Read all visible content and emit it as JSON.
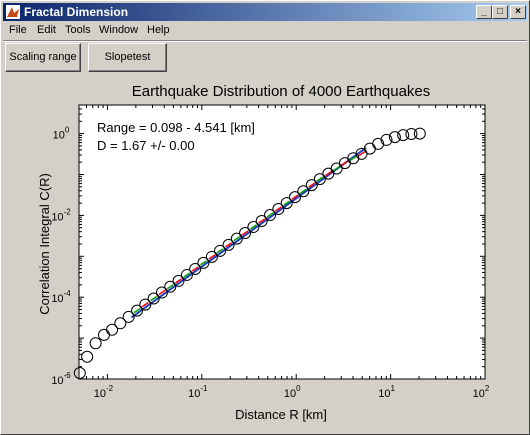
{
  "window": {
    "title": "Fractal Dimension"
  },
  "titlebar_buttons": {
    "minimize": "_",
    "maximize": "□",
    "close": "×"
  },
  "menu": [
    "File",
    "Edit",
    "Tools",
    "Window",
    "Help"
  ],
  "toolbar": {
    "scaling_label": "Scaling range",
    "slopetest_label": "Slopetest"
  },
  "chart_data": {
    "type": "scatter",
    "title": "Earthquake Distribution of 4000 Earthquakes",
    "xlabel": "Distance R [km]",
    "ylabel": "Correlation Integral C(R)",
    "xscale": "log",
    "yscale": "log",
    "xlim": [
      0.005,
      100
    ],
    "ylim": [
      1e-06,
      5
    ],
    "x_ticks": [
      {
        "value": 0.01,
        "base": "10",
        "exp": "-2"
      },
      {
        "value": 0.1,
        "base": "10",
        "exp": "-1"
      },
      {
        "value": 1,
        "base": "10",
        "exp": "0"
      },
      {
        "value": 10,
        "base": "10",
        "exp": "1"
      },
      {
        "value": 100,
        "base": "10",
        "exp": "2"
      }
    ],
    "y_ticks": [
      {
        "value": 1e-06,
        "base": "10",
        "exp": "-6"
      },
      {
        "value": 0.0001,
        "base": "10",
        "exp": "-4"
      },
      {
        "value": 0.01,
        "base": "10",
        "exp": "-2"
      },
      {
        "value": 1,
        "base": "10",
        "exp": "0"
      }
    ],
    "annotations": {
      "range": "Range = 0.098 - 4.541 [km]",
      "dimension": "D =  1.67  +/- 0.00"
    },
    "points": [
      [
        0.0051,
        1.4e-06
      ],
      [
        0.0061,
        3.5e-06
      ],
      [
        0.0075,
        7.5e-06
      ],
      [
        0.0092,
        1.2e-05
      ],
      [
        0.0112,
        1.6e-05
      ],
      [
        0.0137,
        2.3e-05
      ],
      [
        0.0168,
        3.3e-05
      ],
      [
        0.0206,
        4.7e-05
      ],
      [
        0.0252,
        6.6e-05
      ],
      [
        0.0309,
        9.3e-05
      ],
      [
        0.0378,
        0.00013
      ],
      [
        0.0463,
        0.00018
      ],
      [
        0.0567,
        0.00025
      ],
      [
        0.0695,
        0.00035
      ],
      [
        0.0851,
        0.00049
      ],
      [
        0.104,
        0.00069
      ],
      [
        0.128,
        0.00097
      ],
      [
        0.156,
        0.00136
      ],
      [
        0.192,
        0.0019
      ],
      [
        0.235,
        0.0027
      ],
      [
        0.287,
        0.0037
      ],
      [
        0.352,
        0.0052
      ],
      [
        0.431,
        0.0073
      ],
      [
        0.528,
        0.0102
      ],
      [
        0.647,
        0.0143
      ],
      [
        0.793,
        0.02
      ],
      [
        0.971,
        0.028
      ],
      [
        1.19,
        0.039
      ],
      [
        1.46,
        0.055
      ],
      [
        1.78,
        0.077
      ],
      [
        2.19,
        0.105
      ],
      [
        2.68,
        0.14
      ],
      [
        3.28,
        0.19
      ],
      [
        4.02,
        0.25
      ],
      [
        4.92,
        0.32
      ],
      [
        6.03,
        0.43
      ],
      [
        7.38,
        0.56
      ],
      [
        9.04,
        0.7
      ],
      [
        11.1,
        0.82
      ],
      [
        13.6,
        0.92
      ],
      [
        16.6,
        0.98
      ],
      [
        20.4,
        1.0
      ]
    ],
    "fit_line": {
      "x": [
        0.018,
        5.5
      ],
      "y": [
        3.2e-05,
        0.45
      ],
      "color": "#1f3fbf"
    },
    "fit_markers": {
      "colors": [
        "#ff0000",
        "#00a000"
      ]
    }
  }
}
